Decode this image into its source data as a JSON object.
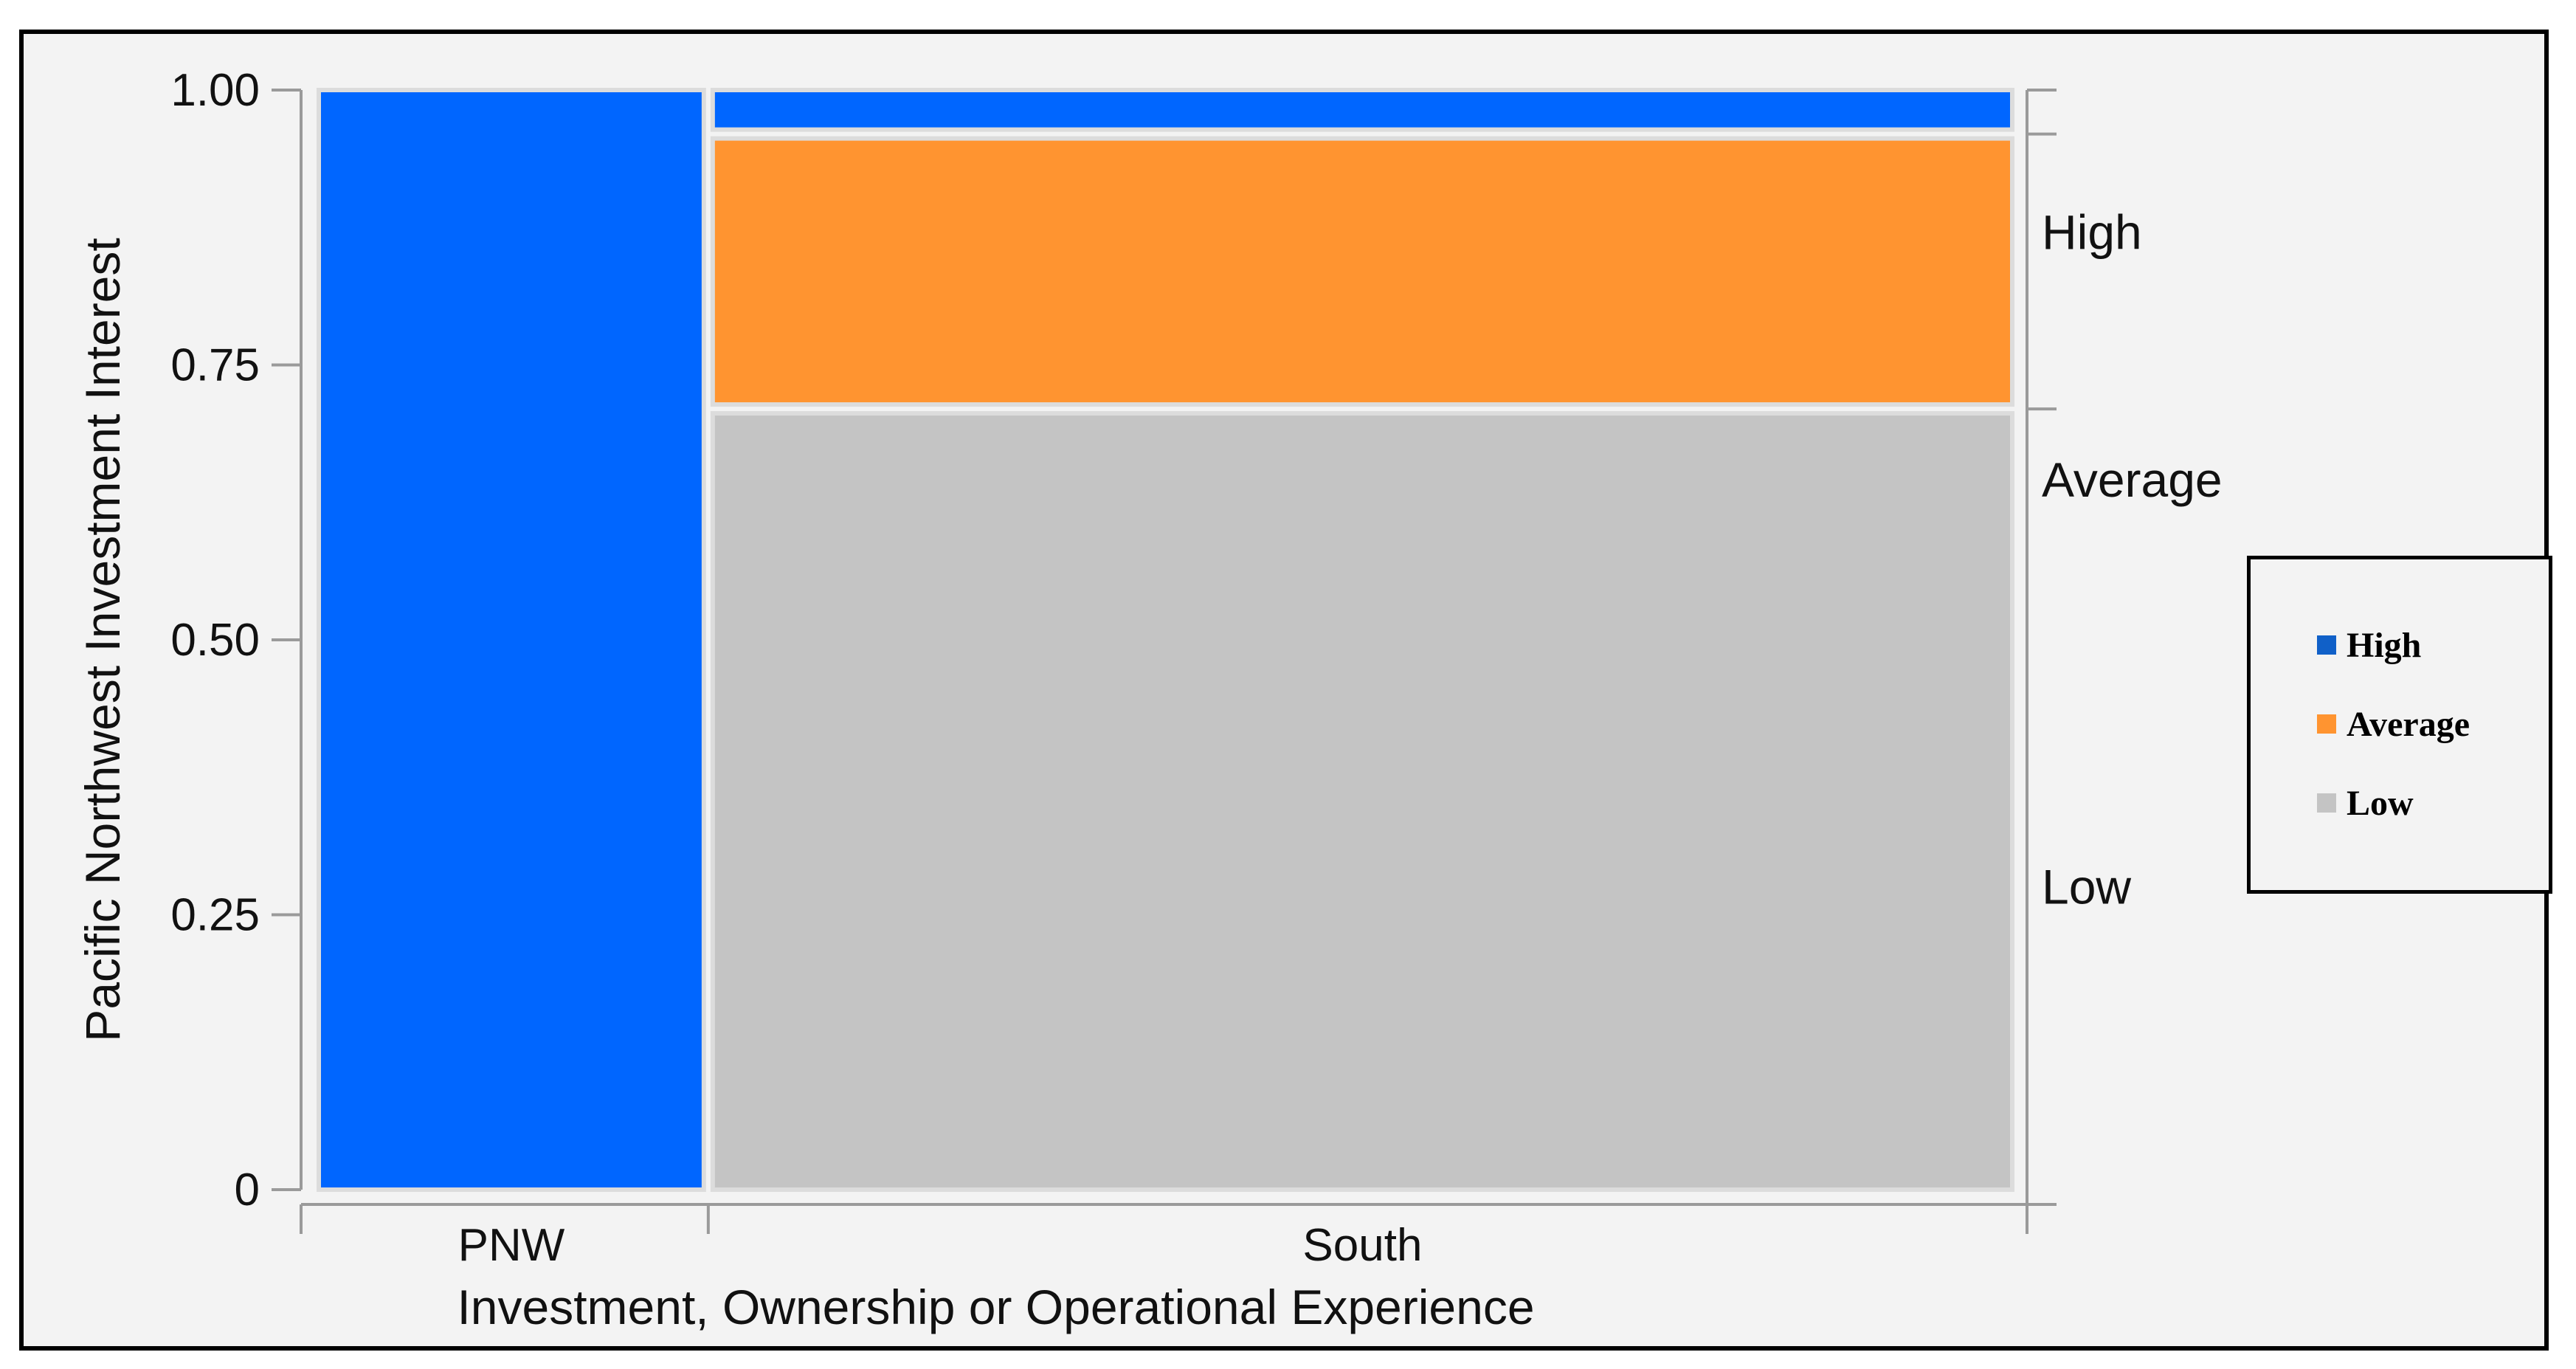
{
  "chart_data": {
    "type": "mosaic",
    "xlabel": "Investment, Ownership or Operational Experience",
    "ylabel": "Pacific Northwest Investment Interest",
    "ylim": [
      0,
      1
    ],
    "yticks": [
      "0",
      "0.25",
      "0.50",
      "0.75",
      "1.00"
    ],
    "ytick_values": [
      0,
      0.25,
      0.5,
      0.75,
      1.0
    ],
    "categories": [
      "PNW",
      "South"
    ],
    "category_widths": [
      0.23,
      0.77
    ],
    "series": [
      {
        "name": "High",
        "color": "#0066ff",
        "values": [
          1.0,
          0.04
        ]
      },
      {
        "name": "Average",
        "color": "#ff9430",
        "values": [
          0.0,
          0.25
        ]
      },
      {
        "name": "Low",
        "color": "#c4c4c4",
        "values": [
          0.0,
          0.71
        ]
      }
    ],
    "right_axis_labels": [
      "High",
      "Average",
      "Low"
    ],
    "legend": {
      "position": "right",
      "items": [
        {
          "label": "High",
          "color": "#1060c8"
        },
        {
          "label": "Average",
          "color": "#ff9430"
        },
        {
          "label": "Low",
          "color": "#c4c4c4"
        }
      ]
    }
  }
}
